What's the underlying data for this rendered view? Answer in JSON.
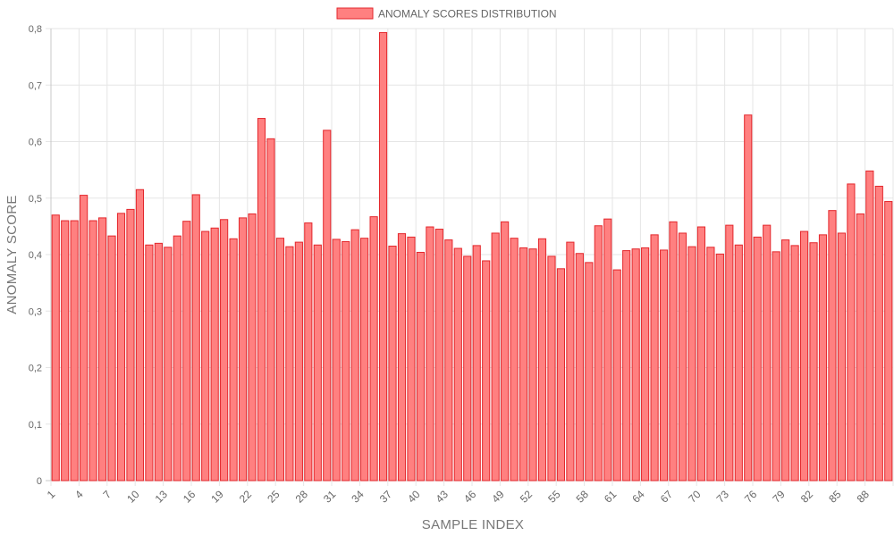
{
  "chart_data": {
    "type": "bar",
    "legend_position": "top-center",
    "grid": true,
    "xlabel": "SAMPLE INDEX",
    "ylabel": "ANOMALY SCORE",
    "ylim": [
      0,
      0.8
    ],
    "y_ticks": [
      "0",
      "0,1",
      "0,2",
      "0,3",
      "0,4",
      "0,5",
      "0,6",
      "0,7",
      "0,8"
    ],
    "x_tick_every": 3,
    "colors": {
      "bar_fill": "#ff8080",
      "bar_stroke": "#e3262b",
      "grid": "#e5e5e5"
    },
    "categories": [
      "1",
      "2",
      "3",
      "4",
      "5",
      "6",
      "7",
      "8",
      "9",
      "10",
      "11",
      "12",
      "13",
      "14",
      "15",
      "16",
      "17",
      "18",
      "19",
      "20",
      "21",
      "22",
      "23",
      "24",
      "25",
      "26",
      "27",
      "28",
      "29",
      "30",
      "31",
      "32",
      "33",
      "34",
      "35",
      "36",
      "37",
      "38",
      "39",
      "40",
      "41",
      "42",
      "43",
      "44",
      "45",
      "46",
      "47",
      "48",
      "49",
      "50",
      "51",
      "52",
      "53",
      "54",
      "55",
      "56",
      "57",
      "58",
      "59",
      "60",
      "61",
      "62",
      "63",
      "64",
      "65",
      "66",
      "67",
      "68",
      "69",
      "70",
      "71",
      "72",
      "73",
      "74",
      "75",
      "76",
      "77",
      "78",
      "79",
      "80",
      "81",
      "82",
      "83",
      "84",
      "85",
      "86",
      "87",
      "88",
      "89",
      "90"
    ],
    "series": [
      {
        "name": "ANOMALY SCORES DISTRIBUTION",
        "values": [
          0.47,
          0.46,
          0.46,
          0.505,
          0.46,
          0.465,
          0.433,
          0.473,
          0.48,
          0.515,
          0.417,
          0.42,
          0.413,
          0.433,
          0.459,
          0.506,
          0.441,
          0.447,
          0.462,
          0.428,
          0.465,
          0.472,
          0.641,
          0.605,
          0.429,
          0.414,
          0.422,
          0.456,
          0.417,
          0.62,
          0.427,
          0.423,
          0.444,
          0.429,
          0.467,
          0.793,
          0.415,
          0.437,
          0.431,
          0.404,
          0.449,
          0.445,
          0.426,
          0.411,
          0.397,
          0.416,
          0.389,
          0.438,
          0.458,
          0.429,
          0.412,
          0.41,
          0.428,
          0.397,
          0.375,
          0.422,
          0.402,
          0.386,
          0.451,
          0.463,
          0.373,
          0.407,
          0.41,
          0.412,
          0.435,
          0.408,
          0.458,
          0.438,
          0.414,
          0.449,
          0.413,
          0.401,
          0.452,
          0.417,
          0.647,
          0.431,
          0.452,
          0.405,
          0.426,
          0.416,
          0.441,
          0.421,
          0.435,
          0.478,
          0.438,
          0.525,
          0.472,
          0.548,
          0.521,
          0.494
        ]
      }
    ]
  }
}
